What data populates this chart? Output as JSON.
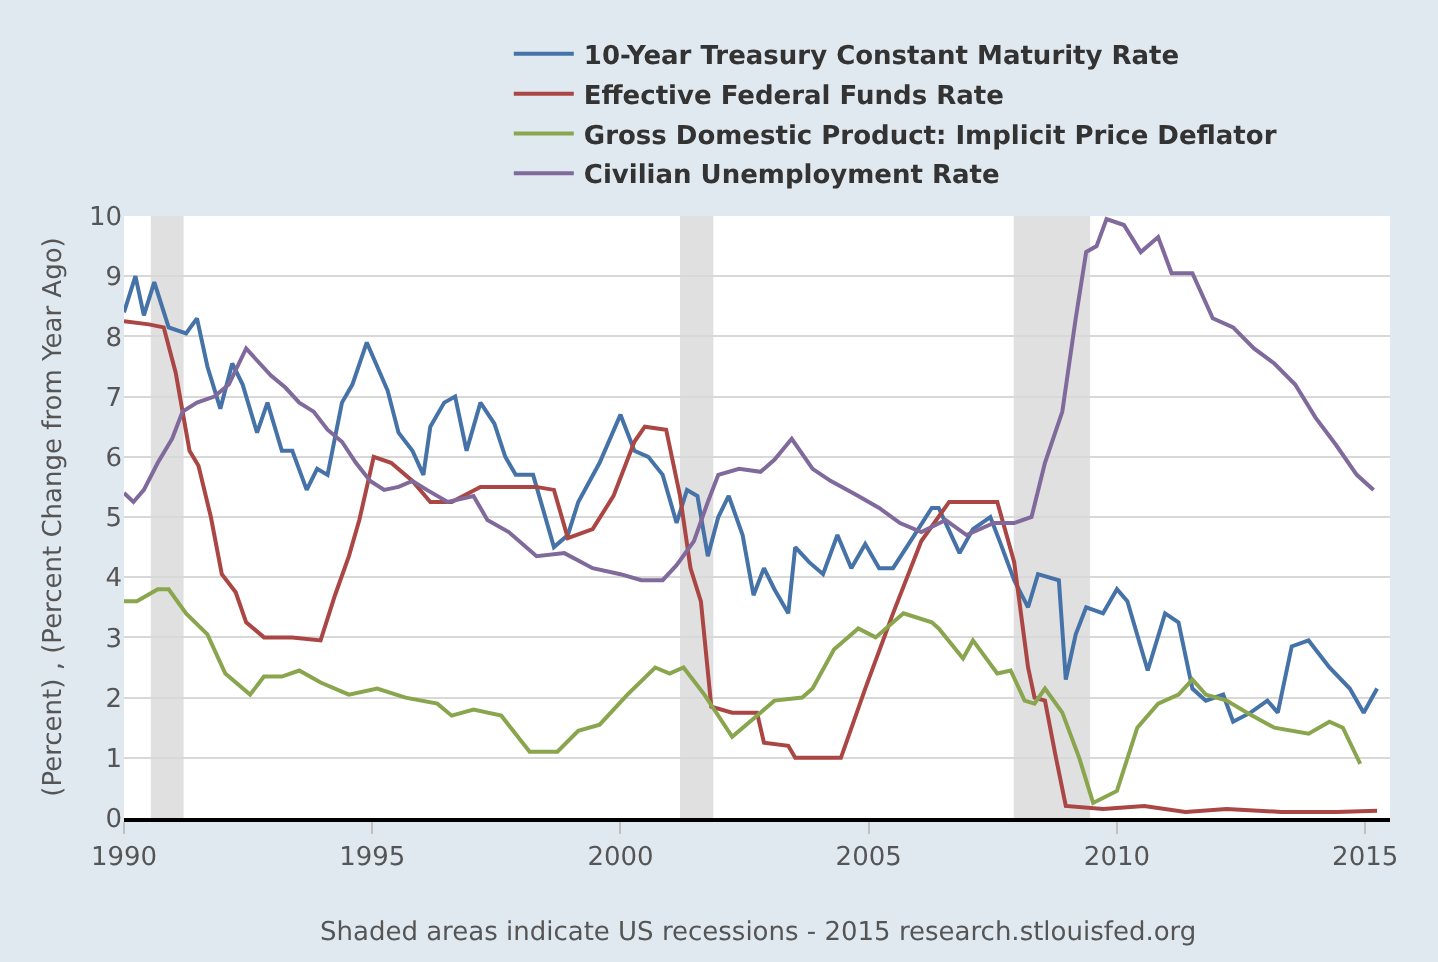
{
  "chart_data": {
    "type": "line",
    "ylabel": "(Percent) , (Percent Change from Year Ago)",
    "xlim": [
      1990,
      2015.5
    ],
    "xticks": [
      1990,
      1995,
      2000,
      2005,
      2010,
      2015
    ],
    "ylim": [
      0,
      10
    ],
    "yticks": [
      0,
      1,
      2,
      3,
      4,
      5,
      6,
      7,
      8,
      9,
      10
    ],
    "grid": "y",
    "legend": "top",
    "marker": "none",
    "line_style": "solid",
    "bands": [
      {
        "axis": "x",
        "from": 1990.54,
        "to": 1991.2,
        "color": "#e0e0e0"
      },
      {
        "axis": "x",
        "from": 2001.2,
        "to": 2001.87,
        "color": "#e0e0e0"
      },
      {
        "axis": "x",
        "from": 2007.92,
        "to": 2009.46,
        "color": "#e0e0e0"
      }
    ],
    "annotations": [
      "Shaded areas indicate US recessions - 2015 research.stlouisfed.org"
    ],
    "series": [
      {
        "name": "10-Year Treasury Constant Maturity Rate",
        "color": "#4572a7",
        "x": [
          1990,
          1990.23,
          1990.4,
          1990.61,
          1990.9,
          1991.25,
          1991.47,
          1991.68,
          1991.94,
          1992.18,
          1992.39,
          1992.68,
          1992.89,
          1993.18,
          1993.39,
          1993.68,
          1993.89,
          1994.1,
          1994.39,
          1994.6,
          1994.89,
          1995.1,
          1995.31,
          1995.53,
          1995.81,
          1996.03,
          1996.17,
          1996.45,
          1996.67,
          1996.9,
          1997.18,
          1997.46,
          1997.68,
          1997.89,
          1998.24,
          1998.66,
          1998.94,
          1999.15,
          1999.58,
          2000,
          2000.28,
          2000.56,
          2000.85,
          2001.13,
          2001.34,
          2001.55,
          2001.76,
          2001.97,
          2002.18,
          2002.46,
          2002.68,
          2002.89,
          2003.1,
          2003.38,
          2003.52,
          2003.8,
          2004.08,
          2004.37,
          2004.65,
          2004.93,
          2005.21,
          2005.49,
          2005.92,
          2006.27,
          2006.41,
          2006.83,
          2007.1,
          2007.45,
          2007.66,
          2007.93,
          2008.21,
          2008.41,
          2008.83,
          2008.97,
          2009.17,
          2009.38,
          2009.72,
          2010,
          2010.21,
          2010.62,
          2010.97,
          2011.24,
          2011.52,
          2011.79,
          2012.14,
          2012.34,
          2012.69,
          2013.03,
          2013.24,
          2013.52,
          2013.86,
          2014.28,
          2014.69,
          2014.97,
          2015.24
        ],
        "values": [
          8.4,
          9.0,
          8.35,
          8.9,
          8.15,
          8.05,
          8.3,
          7.5,
          6.8,
          7.55,
          7.2,
          6.4,
          6.9,
          6.1,
          6.1,
          5.45,
          5.8,
          5.7,
          6.9,
          7.2,
          7.9,
          7.5,
          7.1,
          6.4,
          6.1,
          5.7,
          6.5,
          6.9,
          7.0,
          6.1,
          6.9,
          6.55,
          6.0,
          5.7,
          5.7,
          4.5,
          4.7,
          5.25,
          5.9,
          6.7,
          6.1,
          6.0,
          5.7,
          4.9,
          5.45,
          5.35,
          4.35,
          5.0,
          5.35,
          4.7,
          3.7,
          4.15,
          3.8,
          3.4,
          4.5,
          4.25,
          4.05,
          4.7,
          4.15,
          4.55,
          4.15,
          4.15,
          4.7,
          5.15,
          5.15,
          4.4,
          4.8,
          5.0,
          4.55,
          3.95,
          3.5,
          4.05,
          3.95,
          2.3,
          3.05,
          3.5,
          3.4,
          3.8,
          3.6,
          2.45,
          3.4,
          3.25,
          2.15,
          1.95,
          2.05,
          1.6,
          1.75,
          1.95,
          1.75,
          2.85,
          2.95,
          2.5,
          2.15,
          1.75,
          2.15
        ]
      },
      {
        "name": "Effective Federal Funds Rate",
        "color": "#aa4643",
        "x": [
          1990,
          1990.5,
          1990.8,
          1991.04,
          1991.32,
          1991.5,
          1991.75,
          1991.97,
          1992.25,
          1992.46,
          1992.82,
          1993.39,
          1993.96,
          1994.25,
          1994.53,
          1994.74,
          1995.03,
          1995.38,
          1995.81,
          1996.17,
          1996.6,
          1997.18,
          1997.6,
          1998.3,
          1998.66,
          1998.94,
          1999.44,
          1999.86,
          2000.28,
          2000.49,
          2000.92,
          2001.2,
          2001.41,
          2001.62,
          2001.83,
          2002.25,
          2002.75,
          2002.89,
          2003.38,
          2003.52,
          2004.44,
          2004.93,
          2005.49,
          2006.06,
          2006.62,
          2007.59,
          2007.93,
          2008.21,
          2008.34,
          2008.55,
          2008.76,
          2008.97,
          2009.72,
          2010.55,
          2011.38,
          2012.21,
          2013.31,
          2014.41,
          2015.24
        ],
        "values": [
          8.25,
          8.2,
          8.15,
          7.4,
          6.1,
          5.85,
          5.0,
          4.05,
          3.75,
          3.25,
          3.0,
          3.0,
          2.95,
          3.7,
          4.35,
          4.95,
          6.0,
          5.9,
          5.6,
          5.25,
          5.25,
          5.5,
          5.5,
          5.5,
          5.45,
          4.65,
          4.8,
          5.35,
          6.25,
          6.5,
          6.45,
          5.35,
          4.15,
          3.6,
          1.85,
          1.75,
          1.75,
          1.25,
          1.2,
          1.0,
          1.0,
          2.15,
          3.4,
          4.6,
          5.25,
          5.25,
          4.25,
          2.5,
          2.0,
          1.95,
          1.05,
          0.2,
          0.15,
          0.2,
          0.1,
          0.15,
          0.1,
          0.1,
          0.12
        ]
      },
      {
        "name": "Gross Domestic Product: Implicit Price Deflator",
        "color": "#89a54e",
        "x": [
          1990,
          1990.26,
          1990.68,
          1990.9,
          1991.25,
          1991.68,
          1992.04,
          1992.54,
          1992.82,
          1993.18,
          1993.53,
          1993.96,
          1994.53,
          1995.1,
          1995.67,
          1996.31,
          1996.6,
          1997.04,
          1997.6,
          1998.17,
          1998.73,
          1999.15,
          1999.58,
          2000.14,
          2000.7,
          2000.99,
          2001.27,
          2001.69,
          2002.25,
          2002.82,
          2003.1,
          2003.66,
          2003.87,
          2004.3,
          2004.79,
          2005.14,
          2005.7,
          2006.27,
          2006.41,
          2006.9,
          2007.1,
          2007.59,
          2007.86,
          2008.14,
          2008.34,
          2008.55,
          2008.9,
          2009.24,
          2009.52,
          2010,
          2010.41,
          2010.83,
          2011.24,
          2011.52,
          2011.79,
          2012.21,
          2012.62,
          2013.17,
          2013.86,
          2014.28,
          2014.55,
          2014.9
        ],
        "values": [
          3.6,
          3.6,
          3.8,
          3.8,
          3.4,
          3.05,
          2.4,
          2.05,
          2.35,
          2.35,
          2.45,
          2.25,
          2.05,
          2.15,
          2.0,
          1.9,
          1.7,
          1.8,
          1.7,
          1.1,
          1.1,
          1.45,
          1.55,
          2.05,
          2.5,
          2.4,
          2.5,
          2.05,
          1.35,
          1.75,
          1.95,
          2.0,
          2.15,
          2.8,
          3.15,
          3.0,
          3.4,
          3.25,
          3.15,
          2.65,
          2.95,
          2.4,
          2.45,
          1.95,
          1.9,
          2.15,
          1.75,
          1.0,
          0.25,
          0.45,
          1.5,
          1.9,
          2.05,
          2.3,
          2.05,
          1.95,
          1.75,
          1.5,
          1.4,
          1.6,
          1.5,
          0.9
        ]
      },
      {
        "name": "Civilian Unemployment Rate",
        "color": "#80699b",
        "x": [
          1990,
          1990.19,
          1990.4,
          1990.68,
          1990.97,
          1991.18,
          1991.47,
          1991.82,
          1992.11,
          1992.46,
          1992.68,
          1992.96,
          1993.25,
          1993.53,
          1993.82,
          1994.1,
          1994.39,
          1994.67,
          1994.96,
          1995.24,
          1995.53,
          1995.81,
          1996.1,
          1996.52,
          1997.04,
          1997.32,
          1997.75,
          1998.31,
          1998.87,
          1999.44,
          2000,
          2000.42,
          2000.85,
          2001.13,
          2001.48,
          2001.76,
          2001.97,
          2002.39,
          2002.82,
          2003.1,
          2003.45,
          2003.87,
          2004.23,
          2004.79,
          2005.21,
          2005.63,
          2006.06,
          2006.55,
          2006.97,
          2007.52,
          2007.93,
          2008.28,
          2008.55,
          2008.9,
          2009.17,
          2009.38,
          2009.59,
          2009.79,
          2010.14,
          2010.48,
          2010.83,
          2011.1,
          2011.52,
          2011.93,
          2012.34,
          2012.76,
          2013.17,
          2013.59,
          2014,
          2014.41,
          2014.83,
          2015.17
        ],
        "values": [
          5.4,
          5.25,
          5.45,
          5.9,
          6.3,
          6.75,
          6.9,
          7.0,
          7.2,
          7.8,
          7.6,
          7.35,
          7.15,
          6.9,
          6.75,
          6.45,
          6.25,
          5.9,
          5.6,
          5.45,
          5.5,
          5.6,
          5.45,
          5.25,
          5.35,
          4.95,
          4.75,
          4.35,
          4.4,
          4.15,
          4.05,
          3.95,
          3.95,
          4.2,
          4.6,
          5.25,
          5.7,
          5.8,
          5.75,
          5.95,
          6.3,
          5.8,
          5.6,
          5.35,
          5.15,
          4.9,
          4.75,
          4.95,
          4.7,
          4.9,
          4.9,
          5.0,
          5.9,
          6.75,
          8.3,
          9.4,
          9.5,
          9.95,
          9.85,
          9.4,
          9.65,
          9.05,
          9.05,
          8.3,
          8.15,
          7.8,
          7.55,
          7.2,
          6.65,
          6.2,
          5.7,
          5.45
        ]
      }
    ]
  }
}
